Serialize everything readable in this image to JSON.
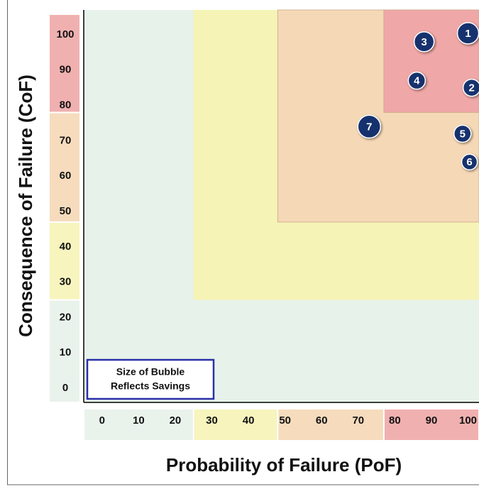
{
  "chart_data": {
    "type": "bubble",
    "x_label": "Probability of Failure (PoF)",
    "y_label": "Consequence of Failure (CoF)",
    "note_lines": [
      "Size of Bubble",
      "Reflects Savings"
    ],
    "xlim": [
      -5,
      103
    ],
    "ylim": [
      -4,
      107
    ],
    "xticks": [
      0,
      10,
      20,
      30,
      40,
      50,
      60,
      70,
      80,
      90,
      100
    ],
    "yticks": [
      0,
      10,
      20,
      30,
      40,
      50,
      60,
      70,
      80,
      90,
      100
    ],
    "plot_color": "#e7f2ea",
    "regions": [
      {
        "x0": 25,
        "y0": 25,
        "color": "#f6f3b6"
      },
      {
        "x0": 48,
        "y0": 47,
        "color": "#f5d8b6"
      },
      {
        "x0": 77,
        "y0": 78,
        "color": "#efa7a7"
      }
    ],
    "bubble_color": "#16306e",
    "labels": [
      "1",
      "2",
      "3",
      "4",
      "5",
      "6",
      "7"
    ],
    "x": [
      100,
      101,
      88,
      86,
      98.5,
      100.4,
      73
    ],
    "y": [
      100.4,
      85,
      98,
      87,
      72,
      64,
      74
    ],
    "sizes": [
      15,
      12,
      14,
      12,
      12,
      11,
      16
    ]
  }
}
